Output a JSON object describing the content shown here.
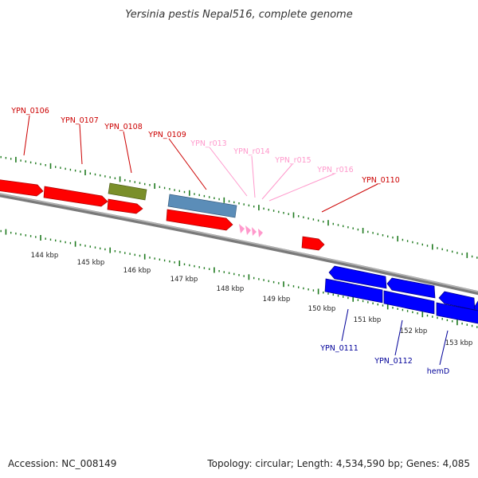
{
  "title": "Yersinia pestis Nepal516, complete genome",
  "accession": "Accession: NC_008149",
  "topology": "Topology: circular; Length: 4,534,590 bp; Genes: 4,085",
  "colors": {
    "backbone": "#7a7a7a",
    "tick": "#1f7a1f",
    "cds": "#ff0000",
    "rrna": "#5b8db8",
    "trna": "#7a8f2a",
    "ncrna": "#ff99cc",
    "reverse_cds": "#0000ff",
    "label_cds": "#cc0000",
    "label_ncrna": "#ff99cc",
    "label_reverse": "#000099"
  },
  "scale_labels": [
    "144 kbp",
    "145 kbp",
    "146 kbp",
    "147 kbp",
    "148 kbp",
    "149 kbp",
    "150 kbp",
    "151 kbp",
    "152 kbp",
    "153 kbp"
  ],
  "gene_labels": [
    {
      "text": "YPN_0106",
      "kind": "cds"
    },
    {
      "text": "YPN_0107",
      "kind": "cds"
    },
    {
      "text": "YPN_0108",
      "kind": "cds"
    },
    {
      "text": "YPN_0109",
      "kind": "cds"
    },
    {
      "text": "YPN_r013",
      "kind": "ncrna"
    },
    {
      "text": "YPN_r014",
      "kind": "ncrna"
    },
    {
      "text": "YPN_r015",
      "kind": "ncrna"
    },
    {
      "text": "YPN_r016",
      "kind": "ncrna"
    },
    {
      "text": "YPN_0110",
      "kind": "cds"
    },
    {
      "text": "YPN_0111",
      "kind": "reverse"
    },
    {
      "text": "YPN_0112",
      "kind": "reverse"
    },
    {
      "text": "hemD",
      "kind": "reverse"
    }
  ]
}
